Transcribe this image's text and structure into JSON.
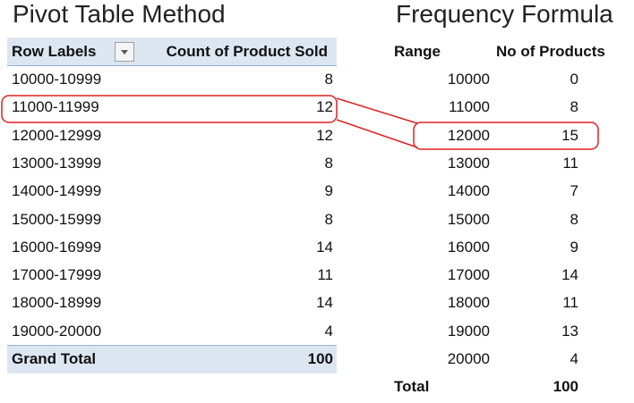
{
  "pivot": {
    "title": "Pivot Table Method",
    "headers": [
      "Row Labels",
      "Count of Product Sold"
    ],
    "rows": [
      [
        "10000-10999",
        8
      ],
      [
        "11000-11999",
        12
      ],
      [
        "12000-12999",
        12
      ],
      [
        "13000-13999",
        8
      ],
      [
        "14000-14999",
        9
      ],
      [
        "15000-15999",
        8
      ],
      [
        "16000-16999",
        14
      ],
      [
        "17000-17999",
        11
      ],
      [
        "18000-18999",
        14
      ],
      [
        "19000-20000",
        4
      ]
    ],
    "grand_total": [
      "Grand Total",
      100
    ]
  },
  "frequency": {
    "title": "Frequency Formula",
    "headers": [
      "Range",
      "No of Products"
    ],
    "rows": [
      [
        10000,
        0
      ],
      [
        11000,
        8
      ],
      [
        12000,
        15
      ],
      [
        13000,
        11
      ],
      [
        14000,
        7
      ],
      [
        15000,
        8
      ],
      [
        16000,
        9
      ],
      [
        17000,
        14
      ],
      [
        18000,
        11
      ],
      [
        19000,
        13
      ],
      [
        20000,
        4
      ]
    ],
    "total": [
      "Total",
      100
    ]
  }
}
